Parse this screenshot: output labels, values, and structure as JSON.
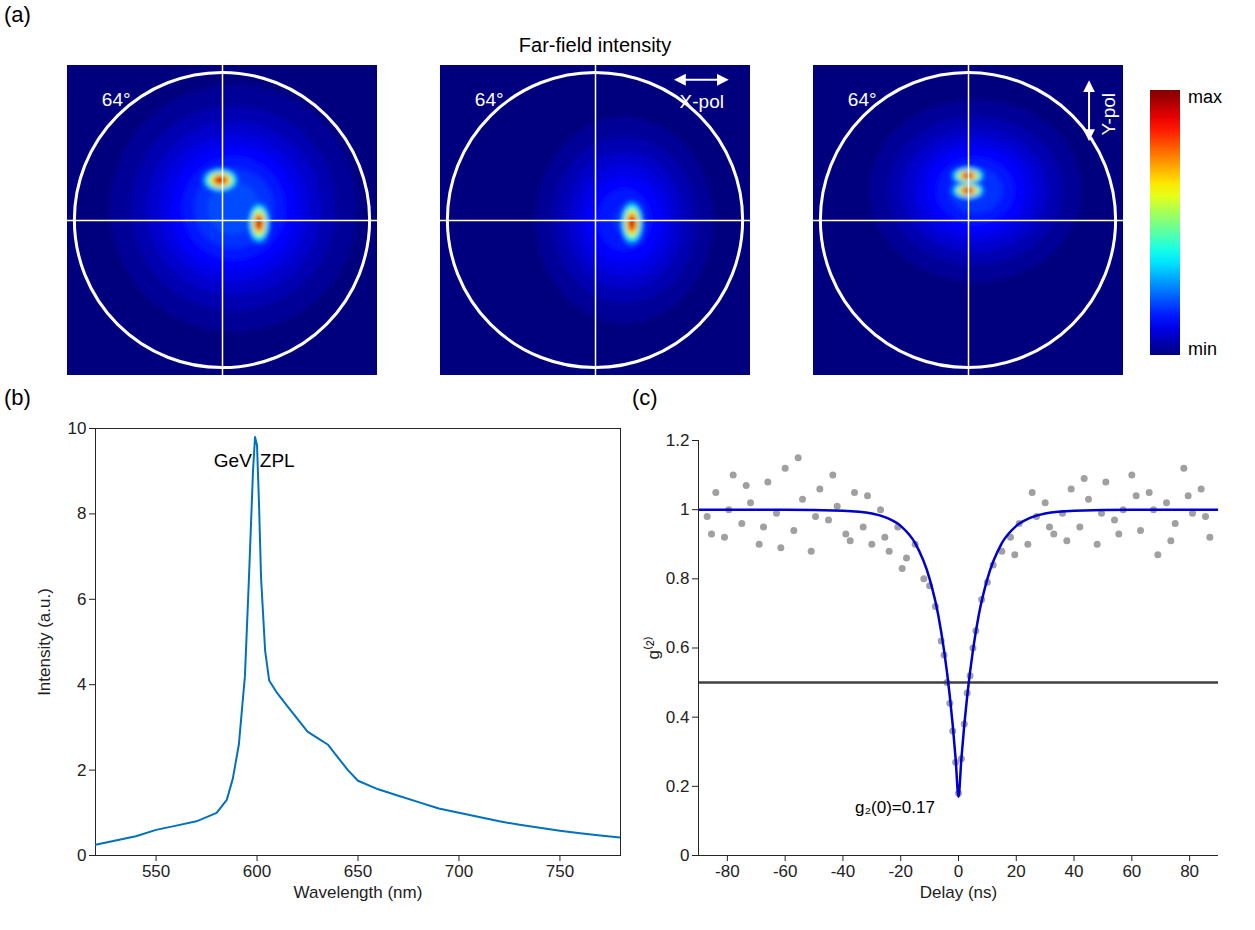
{
  "chart_data": [
    {
      "type": "image",
      "panel": "(a)",
      "title": "Far-field intensity",
      "xlim": [
        -1.05,
        1.05
      ],
      "ylim": [
        -1.05,
        1.05
      ],
      "tick_labels": false,
      "circle_radius": 1,
      "colorbar": {
        "range": [
          0,
          1
        ],
        "labels": [
          {
            "value": 1,
            "label": "max"
          },
          {
            "value": 0,
            "label": "min"
          }
        ]
      },
      "images": [
        {
          "angle_label": "64°",
          "polarizer": null,
          "spots": [
            {
              "x": 0.08,
              "y": 0.08,
              "sx": 0.4,
              "sy": 0.4,
              "peak": 0.22
            },
            {
              "x": -0.01,
              "y": 0.27,
              "sx": 0.065,
              "sy": 0.042,
              "peak": 1.0
            },
            {
              "x": 0.25,
              "y": -0.02,
              "sx": 0.038,
              "sy": 0.075,
              "peak": 1.0
            }
          ]
        },
        {
          "angle_label": "64°",
          "polarizer": {
            "label": "X-pol",
            "axis": "x"
          },
          "spots": [
            {
              "x": 0.2,
              "y": 0.0,
              "sx": 0.3,
              "sy": 0.35,
              "peak": 0.18
            },
            {
              "x": 0.25,
              "y": -0.02,
              "sx": 0.04,
              "sy": 0.08,
              "peak": 1.0
            }
          ]
        },
        {
          "angle_label": "64°",
          "polarizer": {
            "label": "Y-pol",
            "axis": "y"
          },
          "spots": [
            {
              "x": 0.05,
              "y": 0.2,
              "sx": 0.35,
              "sy": 0.3,
              "peak": 0.2
            },
            {
              "x": 0.0,
              "y": 0.3,
              "sx": 0.06,
              "sy": 0.03,
              "peak": 1.0
            },
            {
              "x": 0.0,
              "y": 0.2,
              "sx": 0.06,
              "sy": 0.03,
              "peak": 1.0
            }
          ]
        }
      ]
    },
    {
      "type": "line",
      "panel": "(b)",
      "x_label": "Wavelength (nm)",
      "y_label": "Intensity (a.u.)",
      "color": "#0072bd",
      "x": [
        520,
        530,
        540,
        550,
        560,
        570,
        580,
        585,
        588,
        591,
        594,
        596,
        598,
        599,
        600,
        601,
        602,
        604,
        606,
        610,
        615,
        620,
        625,
        630,
        635,
        640,
        645,
        650,
        660,
        670,
        680,
        690,
        700,
        710,
        720,
        730,
        740,
        750,
        760,
        770,
        780
      ],
      "values": [
        0.25,
        0.35,
        0.45,
        0.6,
        0.7,
        0.8,
        1.0,
        1.3,
        1.8,
        2.6,
        4.2,
        6.5,
        9.0,
        9.8,
        9.6,
        8.2,
        6.5,
        4.8,
        4.1,
        3.8,
        3.5,
        3.2,
        2.9,
        2.75,
        2.6,
        2.3,
        2.0,
        1.75,
        1.55,
        1.4,
        1.25,
        1.1,
        1.0,
        0.9,
        0.8,
        0.72,
        0.65,
        0.58,
        0.52,
        0.47,
        0.42
      ],
      "xlim": [
        520,
        780
      ],
      "xticks": [
        550,
        600,
        650,
        700,
        750
      ],
      "ylim": [
        0,
        10
      ],
      "yticks": [
        0,
        2,
        4,
        6,
        8,
        10
      ],
      "annotations": [
        {
          "text": "GeV",
          "x": 588,
          "y": 9.25
        },
        {
          "text": "ZPL",
          "x": 610,
          "y": 9.25
        }
      ]
    },
    {
      "type": "scatter",
      "panel": "(c)",
      "x_label": "Delay (ns)",
      "y_label": "g⁽²⁾",
      "xlim": [
        -90,
        90
      ],
      "xticks": [
        -80,
        -60,
        -40,
        -20,
        0,
        20,
        40,
        60,
        80
      ],
      "ylim": [
        0,
        1.2
      ],
      "yticks": [
        0,
        0.2,
        0.4,
        0.6,
        0.8,
        1,
        1.2
      ],
      "series": [
        {
          "type": "scatter",
          "color": "#a0a0a0",
          "x": [
            -87,
            -85.5,
            -84,
            -81,
            -79.5,
            -78,
            -75,
            -73.5,
            -72,
            -69,
            -67.5,
            -66,
            -63,
            -61.5,
            -60,
            -57,
            -55.5,
            -54,
            -51,
            -49.5,
            -48,
            -45,
            -43.5,
            -42,
            -39,
            -37.5,
            -36,
            -33,
            -31.5,
            -30,
            -27,
            -25.5,
            -24,
            -21,
            -19.5,
            -18,
            -15,
            -12,
            -10,
            -8,
            -6,
            -5,
            -4,
            -3,
            -2,
            -1,
            0,
            1,
            2,
            3,
            4,
            5,
            6,
            8,
            10,
            12,
            15,
            18,
            19.5,
            21,
            24,
            25.5,
            27,
            30,
            31.5,
            33,
            36,
            37.5,
            39,
            42,
            43.5,
            45,
            48,
            49.5,
            51,
            54,
            55.5,
            57,
            60,
            61.5,
            63,
            66,
            67.5,
            69,
            72,
            73.5,
            75,
            78,
            79.5,
            81,
            84,
            85.5,
            87
          ],
          "values": [
            0.98,
            0.93,
            1.05,
            0.92,
            1.0,
            1.1,
            0.96,
            1.07,
            1.02,
            0.9,
            0.95,
            1.08,
            0.99,
            0.89,
            1.12,
            0.94,
            1.15,
            1.03,
            0.88,
            0.98,
            1.06,
            0.97,
            1.1,
            1.01,
            0.93,
            0.91,
            1.05,
            0.95,
            1.04,
            0.9,
            1.0,
            0.92,
            0.88,
            0.95,
            0.83,
            0.86,
            0.9,
            0.8,
            0.78,
            0.72,
            0.62,
            0.58,
            0.5,
            0.44,
            0.36,
            0.27,
            0.18,
            0.28,
            0.38,
            0.47,
            0.52,
            0.6,
            0.65,
            0.74,
            0.79,
            0.84,
            0.88,
            0.92,
            0.87,
            0.96,
            0.9,
            1.05,
            0.98,
            1.02,
            0.95,
            0.93,
            0.99,
            0.91,
            1.06,
            0.95,
            1.09,
            1.03,
            0.9,
            0.99,
            1.08,
            0.97,
            0.93,
            1.0,
            1.1,
            1.04,
            0.94,
            1.05,
            1.0,
            0.87,
            1.02,
            0.91,
            0.96,
            1.12,
            1.04,
            0.99,
            1.06,
            0.98,
            0.92
          ]
        },
        {
          "type": "line",
          "color": "#0000cc",
          "x": [
            -90,
            -60,
            -40,
            -30,
            -25,
            -20,
            -15,
            -10,
            -7,
            -5,
            -3,
            -2,
            -1,
            0,
            1,
            2,
            3,
            5,
            7,
            10,
            15,
            20,
            25,
            30,
            40,
            60,
            90
          ],
          "values": [
            1.0,
            1.0,
            0.997,
            0.989,
            0.977,
            0.953,
            0.903,
            0.8,
            0.695,
            0.593,
            0.46,
            0.377,
            0.28,
            0.17,
            0.28,
            0.377,
            0.46,
            0.593,
            0.695,
            0.8,
            0.903,
            0.953,
            0.977,
            0.989,
            0.997,
            1.0,
            1.0
          ]
        }
      ],
      "reference_line": {
        "y": 0.5,
        "color": "#404040"
      },
      "annotations": [
        {
          "text": "g₂(0)=0.17",
          "x": -22,
          "y": 0.14
        }
      ]
    }
  ]
}
